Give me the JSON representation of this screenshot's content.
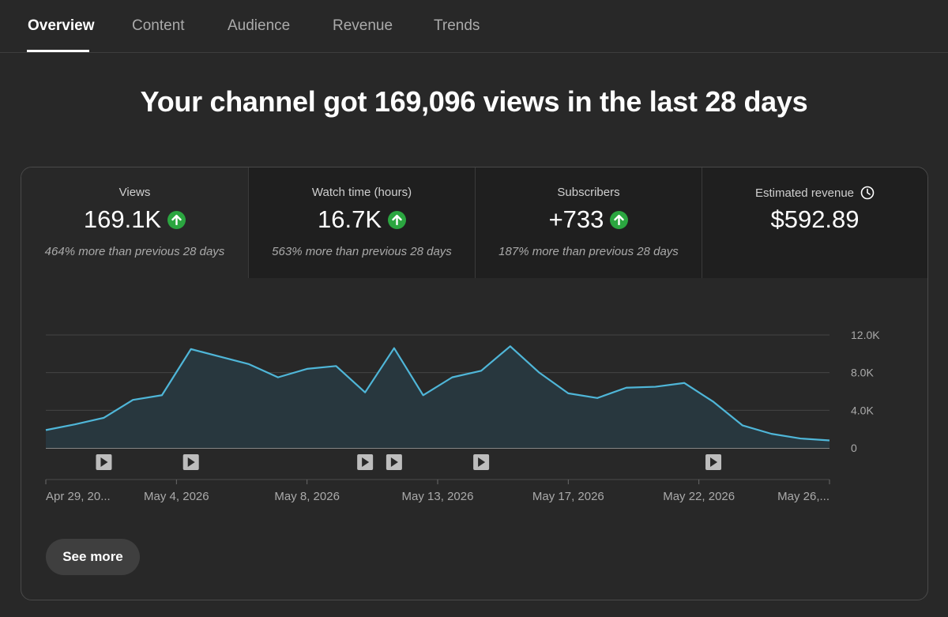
{
  "tabs": [
    {
      "label": "Overview",
      "active": true
    },
    {
      "label": "Content",
      "active": false
    },
    {
      "label": "Audience",
      "active": false
    },
    {
      "label": "Revenue",
      "active": false
    },
    {
      "label": "Trends",
      "active": false
    }
  ],
  "headline": "Your channel got 169,096 views in the last 28 days",
  "metrics": [
    {
      "label": "Views",
      "value": "169.1K",
      "trend": "up",
      "comparison": "464% more than previous 28 days"
    },
    {
      "label": "Watch time (hours)",
      "value": "16.7K",
      "trend": "up",
      "comparison": "563% more than previous 28 days"
    },
    {
      "label": "Subscribers",
      "value": "+733",
      "trend": "up",
      "comparison": "187% more than previous 28 days"
    },
    {
      "label": "Estimated revenue",
      "value": "$592.89",
      "icon": "clock-icon"
    }
  ],
  "colors": {
    "line": "#4fb6d8",
    "up_badge": "#2ba640",
    "background": "#282828"
  },
  "chart_data": {
    "type": "area",
    "y_ticks": [
      "12.0K",
      "8.0K",
      "4.0K",
      "0"
    ],
    "ylim": [
      0,
      12000
    ],
    "x_tick_labels": [
      "Apr 29, 20...",
      "May 4, 2026",
      "May 8, 2026",
      "May 13, 2026",
      "May 17, 2026",
      "May 22, 2026",
      "May 26,..."
    ],
    "series": [
      {
        "values": [
          1900,
          2500,
          3200,
          5100,
          5600,
          10500,
          9700,
          8900,
          7500,
          8400,
          8700,
          5900,
          10600,
          5600,
          7500,
          8200,
          10800,
          8000,
          5800,
          5300,
          6400,
          6500,
          6900,
          4900,
          2400,
          1500,
          1000,
          800
        ]
      }
    ],
    "video_markers_day_index": [
      2,
      5,
      11,
      12,
      15,
      23
    ],
    "grid": true
  },
  "see_more_label": "See more"
}
